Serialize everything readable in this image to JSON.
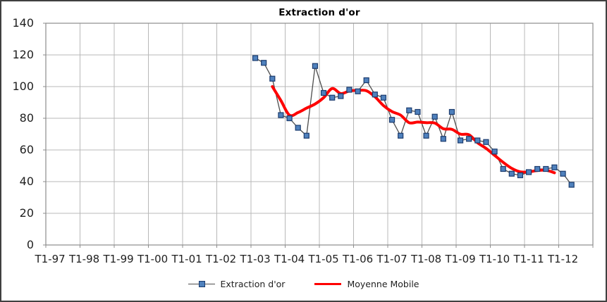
{
  "window": {
    "background": "#ffffff",
    "border_color": "#404040"
  },
  "chart_data": {
    "type": "line",
    "title": "Extraction d'or",
    "xlabel": "",
    "ylabel": "",
    "ylim": [
      0,
      140
    ],
    "ytick_step": 20,
    "ytick_labels": [
      "140",
      "120",
      "100",
      "80",
      "60",
      "40",
      "20",
      "0"
    ],
    "x_axis_labels": [
      "T1-97",
      "T1-98",
      "T1-99",
      "T1-00",
      "T1-01",
      "T1-02",
      "T1-03",
      "T1-04",
      "T1-05",
      "T1-06",
      "T1-07",
      "T1-08",
      "T1-09",
      "T1-10",
      "T1-11",
      "T1-12"
    ],
    "quarters_per_tick": 4,
    "total_quarters": 64,
    "grid": true,
    "legend_position": "bottom",
    "series": [
      {
        "name": "Extraction d'or",
        "type": "line_with_square_markers",
        "line_color": "#4d4d4d",
        "marker_fill": "#4f81bd",
        "marker_border": "#1c3c6e",
        "start_quarter_index": 24,
        "start_label": "T1-03",
        "end_label": "T2-12",
        "values": [
          118,
          115,
          105,
          82,
          80,
          74,
          69,
          113,
          96,
          93,
          94,
          98,
          97,
          104,
          95,
          93,
          79,
          69,
          85,
          84,
          69,
          81,
          67,
          84,
          66,
          67,
          66,
          65,
          59,
          48,
          45,
          44,
          46,
          48,
          48,
          49,
          45,
          38
        ]
      },
      {
        "name": "Moyenne Mobile",
        "type": "smooth_line",
        "line_color": "#fe0000",
        "line_width": 4,
        "start_quarter_index": 26,
        "values": [
          100,
          91.2,
          82,
          83.6,
          86.4,
          89,
          93,
          98.8,
          95.6,
          97.2,
          97.6,
          97.4,
          93.6,
          88,
          84.2,
          82,
          77.2,
          77.6,
          77.2,
          77,
          73.4,
          73,
          70,
          69.6,
          64.6,
          61,
          56.6,
          52.2,
          48.4,
          46.2,
          46.2,
          47,
          47.2,
          45.6
        ]
      }
    ],
    "colors": {
      "gridline": "#b8b8b8",
      "plot_border": "#8c8c8c",
      "tick": "#8c8c8c",
      "axis_text": "#1f1f1f",
      "title_text": "#000000"
    }
  }
}
